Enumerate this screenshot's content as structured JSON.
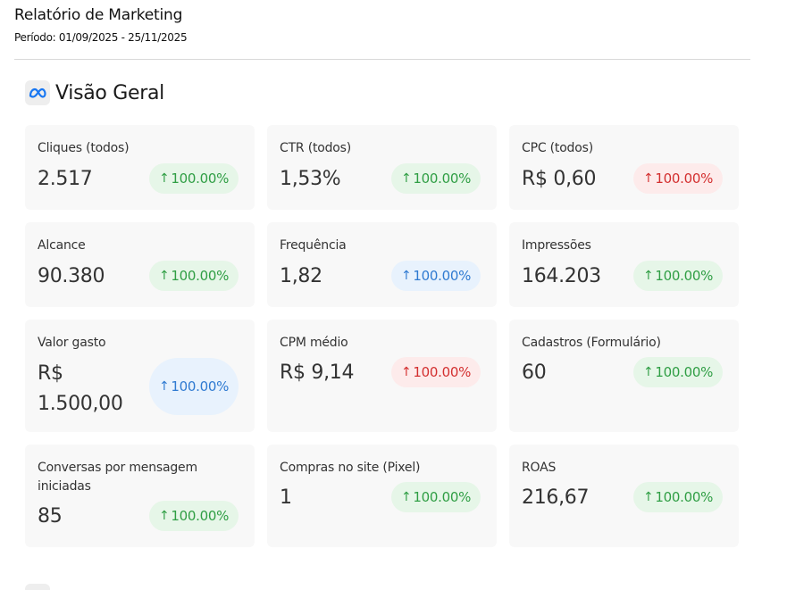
{
  "report": {
    "title": "Relatório de Marketing",
    "period": "Período: 01/09/2025 - 25/11/2025"
  },
  "section": {
    "title": "Visão Geral",
    "icon": "meta-logo-icon",
    "icon_color": "#1877f2"
  },
  "metrics": [
    {
      "label": "Cliques (todos)",
      "value": "2.517",
      "change": "100.00%",
      "trend": "up",
      "color": "green"
    },
    {
      "label": "CTR (todos)",
      "value": "1,53%",
      "change": "100.00%",
      "trend": "up",
      "color": "green"
    },
    {
      "label": "CPC (todos)",
      "value": "R$ 0,60",
      "change": "100.00%",
      "trend": "up",
      "color": "red"
    },
    {
      "label": "Alcance",
      "value": "90.380",
      "change": "100.00%",
      "trend": "up",
      "color": "green"
    },
    {
      "label": "Frequência",
      "value": "1,82",
      "change": "100.00%",
      "trend": "up",
      "color": "blue"
    },
    {
      "label": "Impressões",
      "value": "164.203",
      "change": "100.00%",
      "trend": "up",
      "color": "green"
    },
    {
      "label": "Valor gasto",
      "value_line1": "R$",
      "value_line2": "1.500,00",
      "change": "100.00%",
      "trend": "up",
      "color": "blue"
    },
    {
      "label": "CPM médio",
      "value": "R$ 9,14",
      "change": "100.00%",
      "trend": "up",
      "color": "red"
    },
    {
      "label": "Cadastros (Formulário)",
      "value": "60",
      "change": "100.00%",
      "trend": "up",
      "color": "green"
    },
    {
      "label_line1": "Conversas por mensagem",
      "label_line2": "iniciadas",
      "value": "85",
      "change": "100.00%",
      "trend": "up",
      "color": "green"
    },
    {
      "label": "Compras no site (Pixel)",
      "value": "1",
      "change": "100.00%",
      "trend": "up",
      "color": "green"
    },
    {
      "label": "ROAS",
      "value": "216,67",
      "change": "100.00%",
      "trend": "up",
      "color": "green"
    }
  ],
  "arrow_symbol": "↑",
  "colors": {
    "green": "#2f9e44",
    "red": "#d32f2f",
    "blue": "#2f7ad1",
    "card_bg": "#f8f8f8"
  }
}
